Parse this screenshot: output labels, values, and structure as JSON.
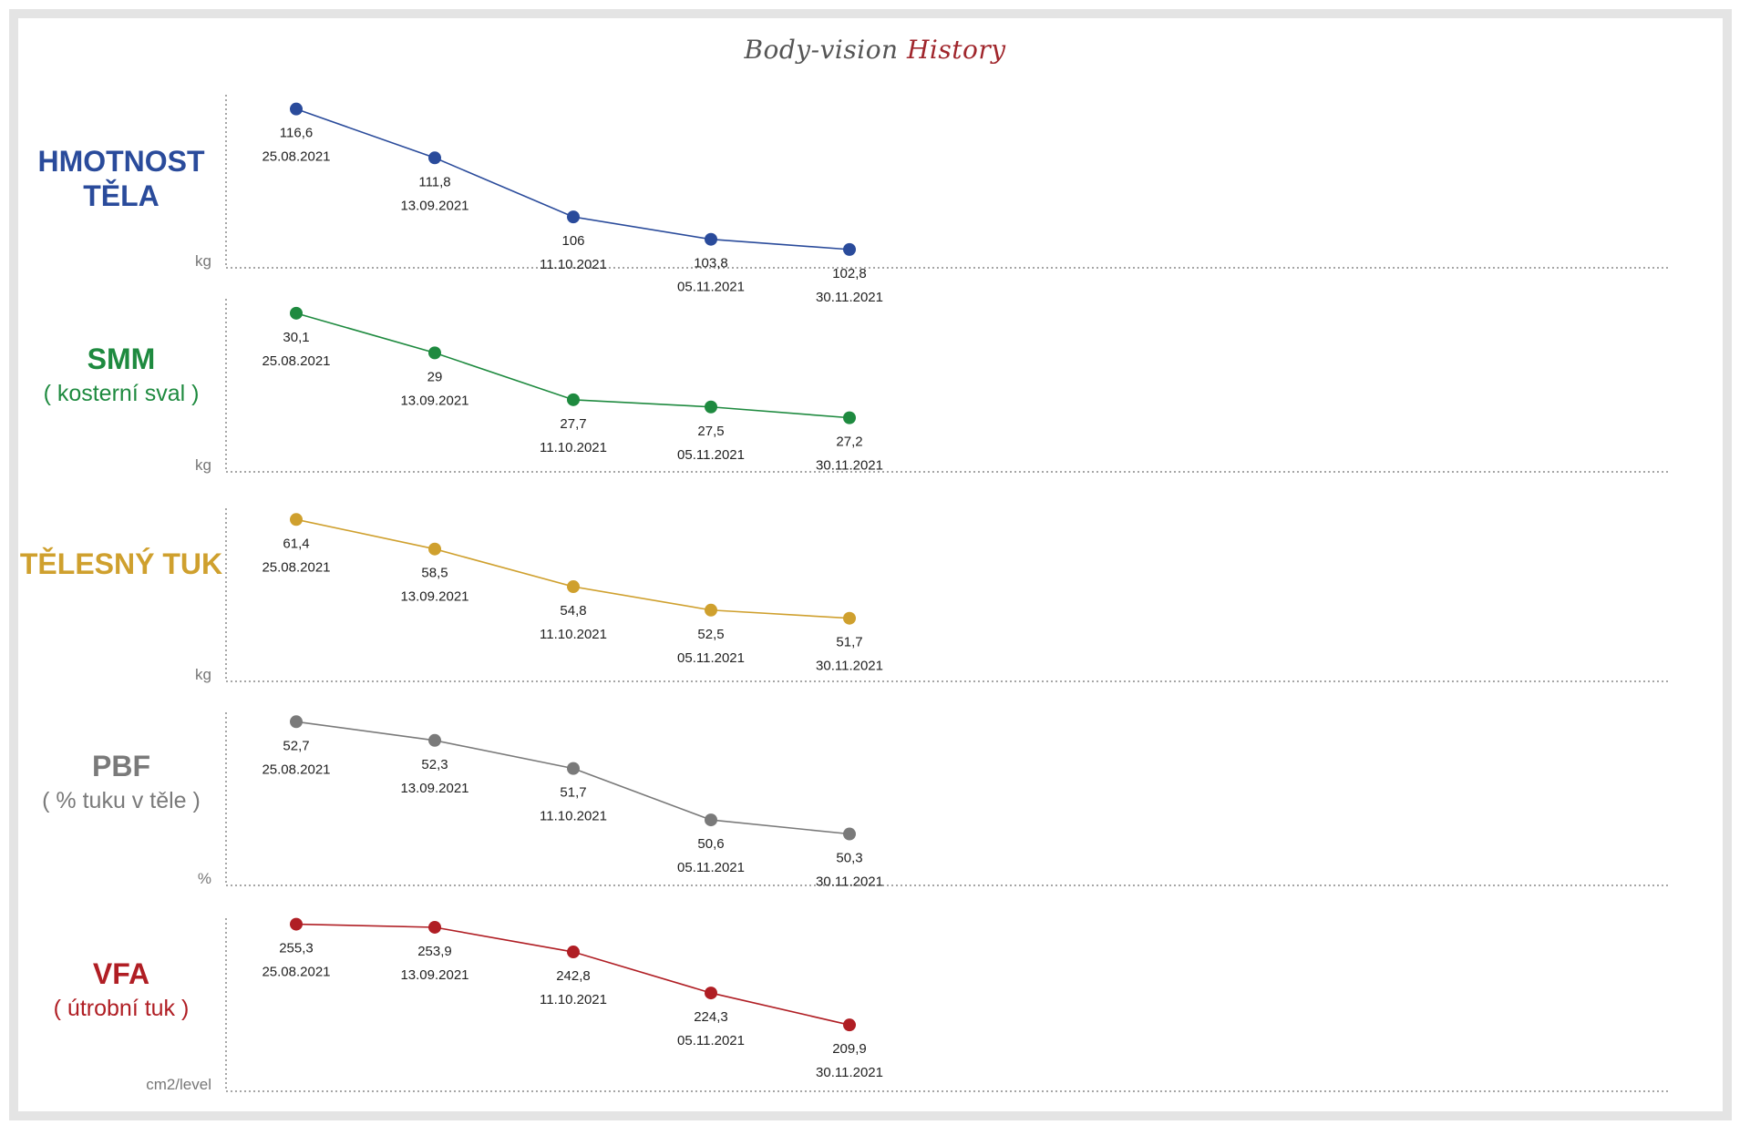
{
  "title": {
    "part1": "Body-vision",
    "part2": "History"
  },
  "chart_data": [
    {
      "type": "line",
      "title": "HMOTNOST TĚLA",
      "subtitle": "",
      "ylabel": "kg",
      "color": "#2a4b9b",
      "x": [
        "25.08.2021",
        "13.09.2021",
        "11.10.2021",
        "05.11.2021",
        "30.11.2021"
      ],
      "values": [
        116.6,
        111.8,
        106,
        103.8,
        102.8
      ],
      "labels": [
        "116,6",
        "111,8",
        "106",
        "103,8",
        "102,8"
      ],
      "ylim": [
        101,
        118
      ]
    },
    {
      "type": "line",
      "title": "SMM",
      "subtitle": "( kosterní sval )",
      "ylabel": "kg",
      "color": "#1e8a3f",
      "x": [
        "25.08.2021",
        "13.09.2021",
        "11.10.2021",
        "05.11.2021",
        "30.11.2021"
      ],
      "values": [
        30.1,
        29,
        27.7,
        27.5,
        27.2
      ],
      "labels": [
        "30,1",
        "29",
        "27,7",
        "27,5",
        "27,2"
      ],
      "ylim": [
        25.7,
        30.5
      ]
    },
    {
      "type": "line",
      "title": "TĚLESNÝ TUK",
      "subtitle": "",
      "ylabel": "kg",
      "color": "#cfa02e",
      "x": [
        "25.08.2021",
        "13.09.2021",
        "11.10.2021",
        "05.11.2021",
        "30.11.2021"
      ],
      "values": [
        61.4,
        58.5,
        54.8,
        52.5,
        51.7
      ],
      "labels": [
        "61,4",
        "58,5",
        "54,8",
        "52,5",
        "51,7"
      ],
      "ylim": [
        45.5,
        62.5
      ]
    },
    {
      "type": "line",
      "title": "PBF",
      "subtitle": "( % tuku v těle )",
      "ylabel": "%",
      "color": "#7a7a7a",
      "x": [
        "25.08.2021",
        "13.09.2021",
        "11.10.2021",
        "05.11.2021",
        "30.11.2021"
      ],
      "values": [
        52.7,
        52.3,
        51.7,
        50.6,
        50.3
      ],
      "labels": [
        "52,7",
        "52,3",
        "51,7",
        "50,6",
        "50,3"
      ],
      "ylim": [
        49.2,
        52.9
      ]
    },
    {
      "type": "line",
      "title": "VFA",
      "subtitle": "( útrobní tuk )",
      "ylabel": "cm2/level",
      "color": "#b01e24",
      "x": [
        "25.08.2021",
        "13.09.2021",
        "11.10.2021",
        "05.11.2021",
        "30.11.2021"
      ],
      "values": [
        255.3,
        253.9,
        242.8,
        224.3,
        209.9
      ],
      "labels": [
        "255,3",
        "253,9",
        "242,8",
        "224,3",
        "209,9"
      ],
      "ylim": [
        180,
        258
      ]
    }
  ]
}
